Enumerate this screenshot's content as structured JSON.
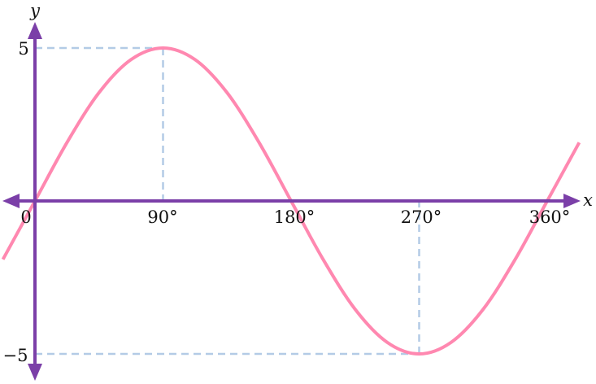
{
  "chart_data": {
    "type": "line",
    "xlabel": "x",
    "ylabel": "y",
    "x_ticks": [
      "0",
      "90°",
      "180°",
      "270°",
      "360°"
    ],
    "y_ticks": [
      "5",
      "−5"
    ],
    "xlim": [
      -22.5,
      382.5
    ],
    "ylim": [
      -5,
      5
    ],
    "grid": false,
    "colors": {
      "curve": "#ff88b0",
      "axes": "#7b3fa8",
      "guides": "#b3cbe6"
    },
    "guides": [
      {
        "x": 90,
        "y": 5
      },
      {
        "x": 270,
        "y": -5
      }
    ],
    "series": [
      {
        "x": [
          -22.5,
          0,
          22.5,
          45,
          67.5,
          90,
          112.5,
          135,
          157.5,
          180,
          202.5,
          225,
          247.5,
          270,
          292.5,
          315,
          337.5,
          360,
          382.5
        ],
        "y": [
          -1.91,
          0,
          1.91,
          3.54,
          4.62,
          5,
          4.62,
          3.54,
          1.91,
          0,
          -1.91,
          -3.54,
          -4.62,
          -5,
          -4.62,
          -3.54,
          -1.91,
          0,
          1.91
        ]
      }
    ]
  }
}
